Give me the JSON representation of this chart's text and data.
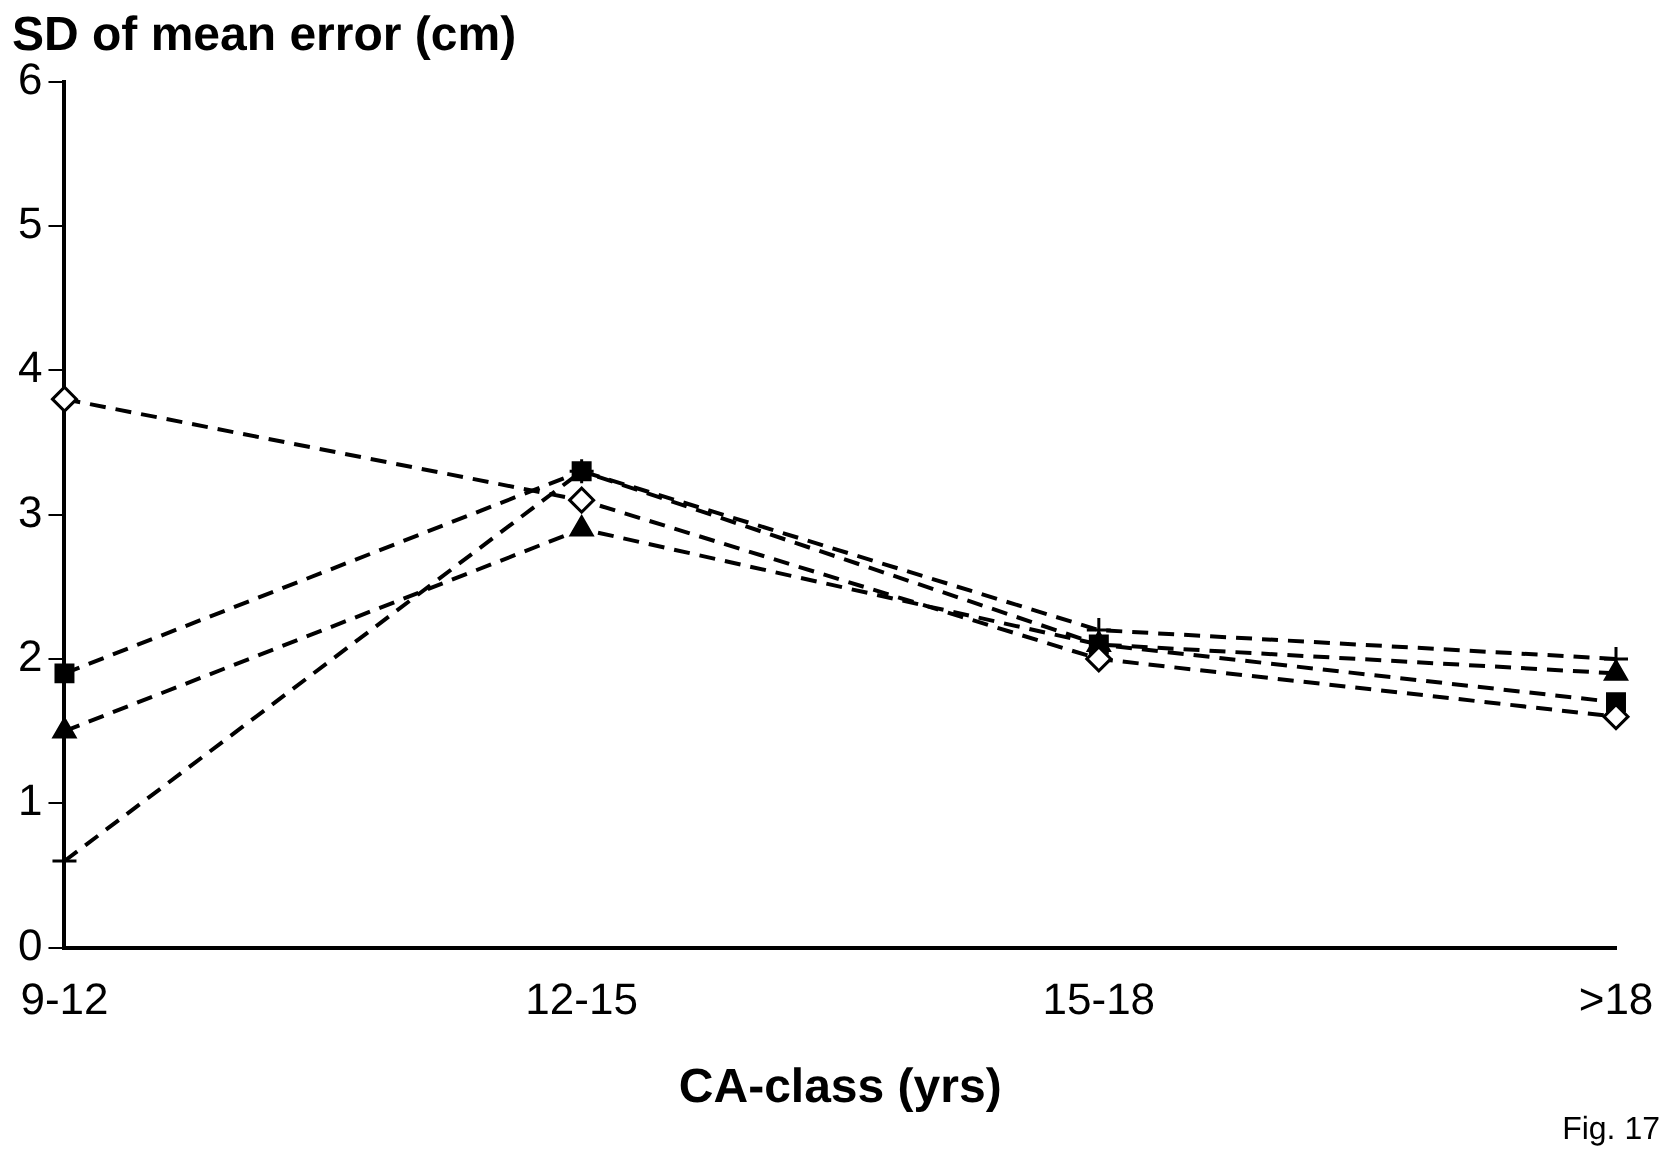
{
  "chart_data": {
    "type": "line",
    "title": "SD of mean error (cm)",
    "xlabel": "CA-class (yrs)",
    "categories": [
      "9-12",
      "12-15",
      "15-18",
      ">18"
    ],
    "series": [
      {
        "color": "#000000",
        "marker": "diamond",
        "line_style": "dashed",
        "values": [
          3.8,
          3.1,
          2.0,
          1.6
        ]
      },
      {
        "color": "#000000",
        "marker": "square",
        "line_style": "dashed",
        "values": [
          1.9,
          3.3,
          2.1,
          1.7
        ]
      },
      {
        "color": "#000000",
        "marker": "triangle",
        "line_style": "dashed",
        "values": [
          1.5,
          2.9,
          2.1,
          1.9
        ]
      },
      {
        "color": "#000000",
        "marker": "cross",
        "line_style": "dashed",
        "values": [
          0.6,
          3.3,
          2.2,
          2.0
        ]
      }
    ],
    "ylim": [
      0,
      6
    ],
    "yticks": [
      0,
      1,
      2,
      3,
      4,
      5,
      6
    ],
    "grid": false,
    "legend": false,
    "annotations": [
      "Fig. 17"
    ]
  }
}
